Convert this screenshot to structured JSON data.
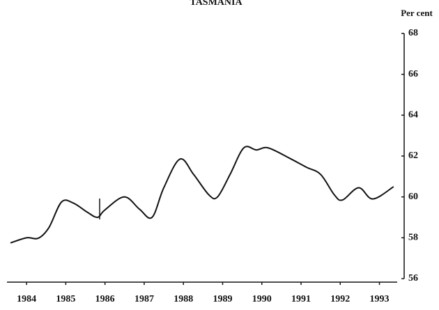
{
  "chart_data": {
    "type": "line",
    "title": "TASMANIA",
    "y_axis_label": "Per cent",
    "x": [
      1983.59,
      1984.0,
      1984.3,
      1984.57,
      1984.89,
      1985.19,
      1985.55,
      1985.81,
      1985.99,
      1986.49,
      1986.88,
      1987.2,
      1987.5,
      1987.91,
      1988.26,
      1988.65,
      1988.87,
      1989.19,
      1989.54,
      1989.86,
      1990.16,
      1990.7,
      1991.14,
      1991.5,
      1991.85,
      1992.06,
      1992.47,
      1992.83,
      1993.36
    ],
    "values": [
      57.75,
      58.0,
      57.98,
      58.5,
      59.75,
      59.7,
      59.25,
      59.0,
      59.35,
      60.0,
      59.4,
      59.0,
      60.45,
      61.85,
      61.1,
      60.1,
      60.0,
      61.1,
      62.4,
      62.3,
      62.4,
      61.9,
      61.45,
      61.1,
      60.1,
      59.85,
      60.45,
      59.9,
      60.5
    ],
    "color": "#111111",
    "xlim": [
      1983.5,
      1993.63
    ],
    "xticks": [
      1984,
      1985,
      1986,
      1987,
      1988,
      1989,
      1990,
      1991,
      1992,
      1993
    ],
    "ylim": [
      56,
      68
    ],
    "yticks": [
      56,
      58,
      60,
      62,
      64,
      66,
      68
    ],
    "y_axis_side": "right",
    "grid": false
  }
}
